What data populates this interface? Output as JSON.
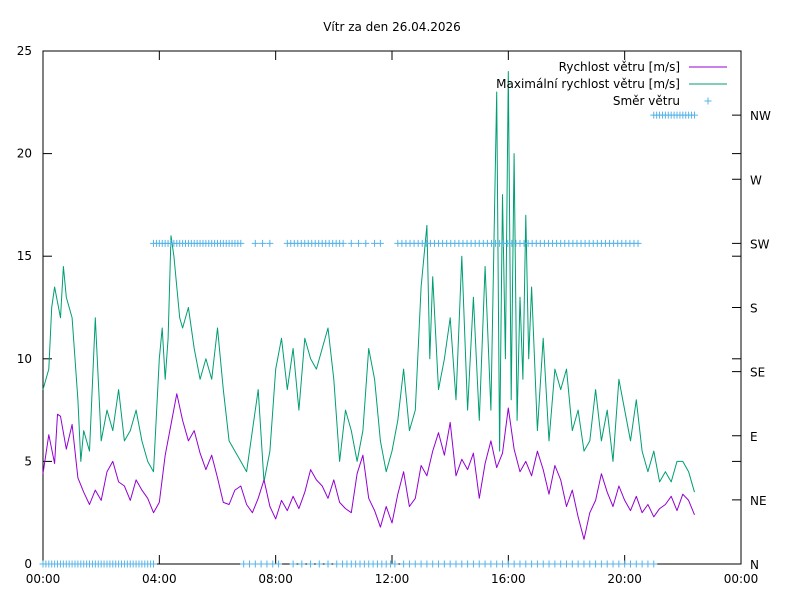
{
  "chart_data": {
    "type": "line",
    "title": "Vítr za den 26.04.2026",
    "xlabel": "",
    "ylabel": "",
    "x_tick_labels": [
      "00:00",
      "04:00",
      "08:00",
      "12:00",
      "16:00",
      "20:00",
      "00:00"
    ],
    "xlim_hours": [
      0,
      24
    ],
    "ylim": [
      0,
      25
    ],
    "y_ticks": [
      0,
      5,
      10,
      15,
      20,
      25
    ],
    "y2_categories": [
      "N",
      "NE",
      "E",
      "SE",
      "S",
      "SW",
      "W",
      "NW"
    ],
    "legend": [
      "Rychlost větru [m/s]",
      "Maximální rychlost větru [m/s]",
      "Směr větru"
    ],
    "legend_position": "top-right",
    "grid": false,
    "colors": {
      "speed": "#9400d3",
      "gust": "#009e73",
      "direction": "#56b4e9",
      "axis": "#000000"
    },
    "series": [
      {
        "name": "Rychlost větru [m/s]",
        "x": [
          0.0,
          0.2,
          0.4,
          0.5,
          0.6,
          0.8,
          1.0,
          1.2,
          1.4,
          1.6,
          1.8,
          2.0,
          2.2,
          2.4,
          2.6,
          2.8,
          3.0,
          3.2,
          3.4,
          3.6,
          3.8,
          4.0,
          4.2,
          4.4,
          4.6,
          4.8,
          5.0,
          5.2,
          5.4,
          5.6,
          5.8,
          6.0,
          6.2,
          6.4,
          6.6,
          6.8,
          7.0,
          7.2,
          7.4,
          7.6,
          7.8,
          8.0,
          8.2,
          8.4,
          8.6,
          8.8,
          9.0,
          9.2,
          9.4,
          9.6,
          9.8,
          10.0,
          10.2,
          10.4,
          10.6,
          10.8,
          11.0,
          11.2,
          11.4,
          11.6,
          11.8,
          12.0,
          12.2,
          12.4,
          12.6,
          12.8,
          13.0,
          13.2,
          13.4,
          13.6,
          13.8,
          14.0,
          14.2,
          14.4,
          14.6,
          14.8,
          15.0,
          15.2,
          15.4,
          15.6,
          15.8,
          16.0,
          16.2,
          16.4,
          16.6,
          16.8,
          17.0,
          17.2,
          17.4,
          17.6,
          17.8,
          18.0,
          18.2,
          18.4,
          18.6,
          18.8,
          19.0,
          19.2,
          19.4,
          19.6,
          19.8,
          20.0,
          20.2,
          20.4,
          20.6,
          20.8,
          21.0,
          21.2,
          21.4,
          21.6,
          21.8,
          22.0,
          22.2,
          22.4
        ],
        "values": [
          4.4,
          6.3,
          4.9,
          7.3,
          7.2,
          5.6,
          6.8,
          4.2,
          3.5,
          2.9,
          3.6,
          3.1,
          4.5,
          5.0,
          4.0,
          3.8,
          3.1,
          4.1,
          3.6,
          3.2,
          2.5,
          3.0,
          5.3,
          6.8,
          8.3,
          7.0,
          6.0,
          6.5,
          5.4,
          4.6,
          5.3,
          4.2,
          3.0,
          2.9,
          3.6,
          3.8,
          2.9,
          2.5,
          3.2,
          4.1,
          2.8,
          2.2,
          3.1,
          2.6,
          3.3,
          2.7,
          3.5,
          4.6,
          4.1,
          3.8,
          3.2,
          4.1,
          3.0,
          2.7,
          2.5,
          4.4,
          5.3,
          3.2,
          2.6,
          1.8,
          2.8,
          2.0,
          3.4,
          4.5,
          2.8,
          3.2,
          4.8,
          4.3,
          5.5,
          6.4,
          5.3,
          6.9,
          4.3,
          5.1,
          4.6,
          5.4,
          3.2,
          4.9,
          6.0,
          4.7,
          5.4,
          7.6,
          5.6,
          4.5,
          5.0,
          4.3,
          5.5,
          4.6,
          3.4,
          4.8,
          4.1,
          2.8,
          3.6,
          2.3,
          1.2,
          2.5,
          3.1,
          4.4,
          3.5,
          2.8,
          3.8,
          3.1,
          2.6,
          3.3,
          2.5,
          2.9,
          2.3,
          2.7,
          2.9,
          3.3,
          2.6,
          3.4,
          3.1,
          2.4
        ]
      },
      {
        "name": "Maximální rychlost větru [m/s]",
        "x": [
          0.0,
          0.2,
          0.3,
          0.4,
          0.6,
          0.7,
          0.8,
          1.0,
          1.2,
          1.3,
          1.4,
          1.6,
          1.8,
          2.0,
          2.2,
          2.4,
          2.6,
          2.8,
          3.0,
          3.2,
          3.4,
          3.6,
          3.8,
          4.0,
          4.1,
          4.2,
          4.3,
          4.4,
          4.5,
          4.6,
          4.7,
          4.8,
          5.0,
          5.2,
          5.4,
          5.6,
          5.8,
          6.0,
          6.2,
          6.4,
          6.6,
          6.8,
          7.0,
          7.2,
          7.4,
          7.6,
          7.8,
          8.0,
          8.2,
          8.4,
          8.6,
          8.8,
          9.0,
          9.2,
          9.4,
          9.6,
          9.8,
          10.0,
          10.2,
          10.4,
          10.6,
          10.8,
          11.0,
          11.2,
          11.4,
          11.6,
          11.8,
          12.0,
          12.2,
          12.4,
          12.6,
          12.8,
          13.0,
          13.2,
          13.3,
          13.4,
          13.6,
          13.8,
          14.0,
          14.2,
          14.4,
          14.6,
          14.8,
          15.0,
          15.2,
          15.4,
          15.6,
          15.7,
          15.8,
          15.9,
          16.0,
          16.1,
          16.2,
          16.3,
          16.4,
          16.5,
          16.6,
          16.7,
          16.8,
          17.0,
          17.2,
          17.4,
          17.6,
          17.8,
          18.0,
          18.2,
          18.4,
          18.6,
          18.8,
          19.0,
          19.2,
          19.4,
          19.6,
          19.8,
          20.0,
          20.2,
          20.4,
          20.6,
          20.8,
          21.0,
          21.2,
          21.4,
          21.6,
          21.8,
          22.0,
          22.2,
          22.4
        ],
        "values": [
          8.5,
          9.5,
          12.5,
          13.5,
          12.0,
          14.5,
          13.0,
          12.0,
          8.0,
          5.0,
          6.5,
          5.5,
          12.0,
          6.0,
          7.5,
          6.5,
          8.5,
          6.0,
          6.5,
          7.5,
          6.0,
          5.0,
          4.5,
          10.0,
          11.5,
          9.0,
          11.0,
          16.0,
          15.0,
          13.5,
          12.0,
          11.5,
          12.5,
          10.5,
          9.0,
          10.0,
          9.0,
          11.5,
          8.5,
          6.0,
          5.5,
          5.0,
          4.5,
          6.5,
          8.5,
          4.0,
          5.5,
          9.5,
          11.0,
          8.5,
          10.5,
          7.5,
          11.0,
          10.0,
          9.5,
          10.5,
          11.5,
          9.0,
          5.0,
          7.5,
          6.5,
          5.0,
          6.5,
          10.5,
          9.0,
          6.0,
          4.5,
          5.5,
          7.0,
          9.5,
          6.5,
          7.5,
          13.5,
          16.5,
          10.0,
          14.0,
          8.5,
          10.0,
          12.0,
          8.0,
          15.0,
          7.5,
          13.0,
          7.0,
          14.5,
          7.5,
          23.0,
          5.5,
          18.0,
          10.0,
          24.0,
          8.0,
          20.0,
          7.0,
          13.0,
          9.0,
          17.0,
          10.0,
          13.5,
          6.5,
          11.0,
          6.0,
          9.5,
          8.5,
          9.5,
          6.5,
          7.5,
          5.5,
          6.0,
          8.5,
          6.0,
          7.5,
          5.0,
          9.0,
          7.5,
          6.0,
          8.0,
          5.5,
          4.5,
          5.5,
          4.0,
          4.5,
          4.0,
          5.0,
          5.0,
          4.5,
          3.5
        ]
      },
      {
        "name": "Směr větru",
        "marker": "+",
        "runs": [
          {
            "category": "N",
            "from": 0.0,
            "to": 3.8,
            "step": 0.1
          },
          {
            "category": "SW",
            "from": 3.8,
            "to": 6.8,
            "step": 0.1
          },
          {
            "category": "N",
            "from": 6.9,
            "to": 8.2,
            "step": 0.2
          },
          {
            "category": "SW",
            "from": 7.3,
            "to": 7.8,
            "step": 0.25
          },
          {
            "category": "SW",
            "from": 8.4,
            "to": 10.4,
            "step": 0.12
          },
          {
            "category": "N",
            "from": 8.6,
            "to": 10.1,
            "step": 0.3
          },
          {
            "category": "N",
            "from": 10.3,
            "to": 12.2,
            "step": 0.15
          },
          {
            "category": "SW",
            "from": 10.6,
            "to": 11.1,
            "step": 0.25
          },
          {
            "category": "SW",
            "from": 11.4,
            "to": 11.6,
            "step": 0.2
          },
          {
            "category": "SW",
            "from": 12.2,
            "to": 20.5,
            "step": 0.14
          },
          {
            "category": "N",
            "from": 12.4,
            "to": 21.0,
            "step": 0.2
          },
          {
            "category": "NW",
            "from": 21.0,
            "to": 22.4,
            "step": 0.1
          }
        ]
      }
    ]
  }
}
